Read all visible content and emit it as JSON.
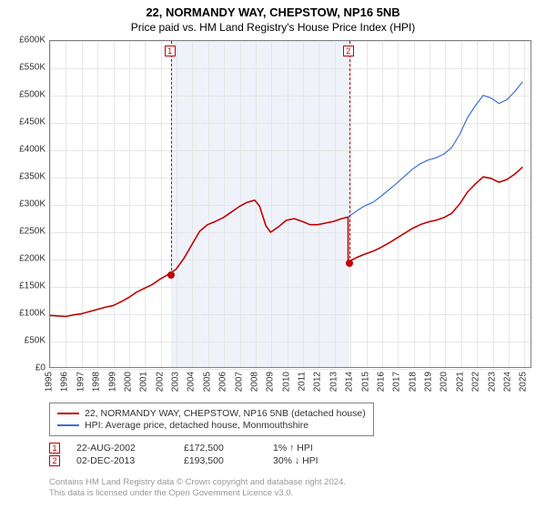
{
  "title": "22, NORMANDY WAY, CHEPSTOW, NP16 5NB",
  "subtitle": "Price paid vs. HM Land Registry's House Price Index (HPI)",
  "chart": {
    "type": "line",
    "background_color": "#ffffff",
    "plot_border_color": "#808080",
    "grid_color": "#e6e6e6",
    "shade_color": "#f0f2fa",
    "x_range": [
      1995,
      2025.5
    ],
    "y_range": [
      0,
      600000
    ],
    "y_ticks": [
      0,
      50000,
      100000,
      150000,
      200000,
      250000,
      300000,
      350000,
      400000,
      450000,
      500000,
      550000,
      600000
    ],
    "y_tick_labels": [
      "£0",
      "£50K",
      "£100K",
      "£150K",
      "£200K",
      "£250K",
      "£300K",
      "£350K",
      "£400K",
      "£450K",
      "£500K",
      "£550K",
      "£600K"
    ],
    "x_ticks": [
      1995,
      1996,
      1997,
      1998,
      1999,
      2000,
      2001,
      2002,
      2003,
      2004,
      2005,
      2006,
      2007,
      2008,
      2009,
      2010,
      2011,
      2012,
      2013,
      2014,
      2015,
      2016,
      2017,
      2018,
      2019,
      2020,
      2021,
      2022,
      2023,
      2024,
      2025
    ],
    "x_tick_labels": [
      "1995",
      "1996",
      "1997",
      "1998",
      "1999",
      "2000",
      "2001",
      "2002",
      "2003",
      "2004",
      "2005",
      "2006",
      "2007",
      "2008",
      "2009",
      "2010",
      "2011",
      "2012",
      "2013",
      "2014",
      "2015",
      "2016",
      "2017",
      "2018",
      "2019",
      "2020",
      "2021",
      "2022",
      "2023",
      "2024",
      "2025"
    ],
    "label_fontsize": 10,
    "series": [
      {
        "name": "property",
        "label": "22, NORMANDY WAY, CHEPSTOW, NP16 5NB (detached house)",
        "color": "#c00000",
        "line_width": 1.6,
        "data": [
          [
            1995.0,
            95000
          ],
          [
            1995.5,
            94000
          ],
          [
            1996.0,
            93000
          ],
          [
            1996.5,
            96000
          ],
          [
            1997.0,
            98000
          ],
          [
            1997.5,
            102000
          ],
          [
            1998.0,
            106000
          ],
          [
            1998.5,
            110000
          ],
          [
            1999.0,
            113000
          ],
          [
            1999.5,
            120000
          ],
          [
            2000.0,
            128000
          ],
          [
            2000.5,
            138000
          ],
          [
            2001.0,
            145000
          ],
          [
            2001.5,
            152000
          ],
          [
            2002.0,
            162000
          ],
          [
            2002.63,
            172500
          ],
          [
            2003.0,
            180000
          ],
          [
            2003.5,
            200000
          ],
          [
            2004.0,
            225000
          ],
          [
            2004.5,
            250000
          ],
          [
            2005.0,
            262000
          ],
          [
            2005.5,
            268000
          ],
          [
            2006.0,
            275000
          ],
          [
            2006.5,
            285000
          ],
          [
            2007.0,
            295000
          ],
          [
            2007.5,
            303000
          ],
          [
            2008.0,
            307000
          ],
          [
            2008.3,
            296000
          ],
          [
            2008.7,
            260000
          ],
          [
            2009.0,
            248000
          ],
          [
            2009.5,
            258000
          ],
          [
            2010.0,
            270000
          ],
          [
            2010.5,
            273000
          ],
          [
            2011.0,
            268000
          ],
          [
            2011.5,
            262000
          ],
          [
            2012.0,
            262000
          ],
          [
            2012.5,
            265000
          ],
          [
            2013.0,
            268000
          ],
          [
            2013.5,
            273000
          ],
          [
            2013.92,
            276000
          ],
          [
            2013.921,
            193500
          ],
          [
            2014.5,
            202000
          ],
          [
            2015.0,
            208000
          ],
          [
            2015.5,
            213000
          ],
          [
            2016.0,
            220000
          ],
          [
            2016.5,
            228000
          ],
          [
            2017.0,
            237000
          ],
          [
            2017.5,
            246000
          ],
          [
            2018.0,
            255000
          ],
          [
            2018.5,
            262000
          ],
          [
            2019.0,
            267000
          ],
          [
            2019.5,
            270000
          ],
          [
            2020.0,
            275000
          ],
          [
            2020.5,
            283000
          ],
          [
            2021.0,
            300000
          ],
          [
            2021.5,
            322000
          ],
          [
            2022.0,
            337000
          ],
          [
            2022.5,
            350000
          ],
          [
            2023.0,
            347000
          ],
          [
            2023.5,
            340000
          ],
          [
            2024.0,
            345000
          ],
          [
            2024.5,
            355000
          ],
          [
            2025.0,
            368000
          ]
        ]
      },
      {
        "name": "hpi",
        "label": "HPI: Average price, detached house, Monmouthshire",
        "color": "#3b6fd6",
        "line_width": 1.2,
        "data": [
          [
            2013.92,
            276000
          ],
          [
            2014.5,
            288000
          ],
          [
            2015.0,
            297000
          ],
          [
            2015.5,
            303000
          ],
          [
            2016.0,
            314000
          ],
          [
            2016.5,
            326000
          ],
          [
            2017.0,
            338000
          ],
          [
            2017.5,
            351000
          ],
          [
            2018.0,
            364000
          ],
          [
            2018.5,
            374000
          ],
          [
            2019.0,
            381000
          ],
          [
            2019.5,
            385000
          ],
          [
            2020.0,
            392000
          ],
          [
            2020.5,
            404000
          ],
          [
            2021.0,
            428000
          ],
          [
            2021.5,
            459000
          ],
          [
            2022.0,
            481000
          ],
          [
            2022.5,
            500000
          ],
          [
            2023.0,
            495000
          ],
          [
            2023.5,
            485000
          ],
          [
            2024.0,
            492000
          ],
          [
            2024.5,
            507000
          ],
          [
            2025.0,
            525000
          ]
        ]
      }
    ],
    "shaded_spans": [
      [
        2002.63,
        2013.92
      ]
    ],
    "sale_markers": [
      {
        "n": "1",
        "x": 2002.63,
        "y": 172500
      },
      {
        "n": "2",
        "x": 2013.92,
        "y": 193500
      }
    ]
  },
  "legend": {
    "items": [
      {
        "color": "#c00000",
        "label": "22, NORMANDY WAY, CHEPSTOW, NP16 5NB (detached house)"
      },
      {
        "color": "#3b6fd6",
        "label": "HPI: Average price, detached house, Monmouthshire"
      }
    ]
  },
  "sales": [
    {
      "n": "1",
      "date": "22-AUG-2002",
      "price": "£172,500",
      "pct": "1% ↑ HPI"
    },
    {
      "n": "2",
      "date": "02-DEC-2013",
      "price": "£193,500",
      "pct": "30% ↓ HPI"
    }
  ],
  "footer_line1": "Contains HM Land Registry data © Crown copyright and database right 2024.",
  "footer_line2": "This data is licensed under the Open Government Licence v3.0."
}
